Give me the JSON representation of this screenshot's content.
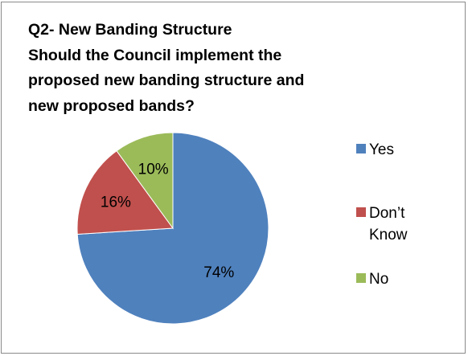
{
  "title_lines": [
    "Q2- New Banding Structure",
    "Should the Council implement the",
    "proposed new banding structure and",
    "new proposed bands?"
  ],
  "chart_data": {
    "type": "pie",
    "title": "Q2- New Banding Structure Should the Council implement the proposed new banding structure and new proposed bands?",
    "start_angle_deg": 0,
    "direction": "clockwise",
    "legend_position": "right",
    "slices": [
      {
        "label": "Yes",
        "value": 74,
        "display": "74%",
        "color": "#4f81bd",
        "legend_lines": [
          "Yes"
        ]
      },
      {
        "label": "Don’t Know",
        "value": 16,
        "display": "16%",
        "color": "#c0504d",
        "legend_lines": [
          "Don’t",
          "Know"
        ]
      },
      {
        "label": "No",
        "value": 10,
        "display": "10%",
        "color": "#9bbb59",
        "legend_lines": [
          "No"
        ]
      }
    ]
  }
}
